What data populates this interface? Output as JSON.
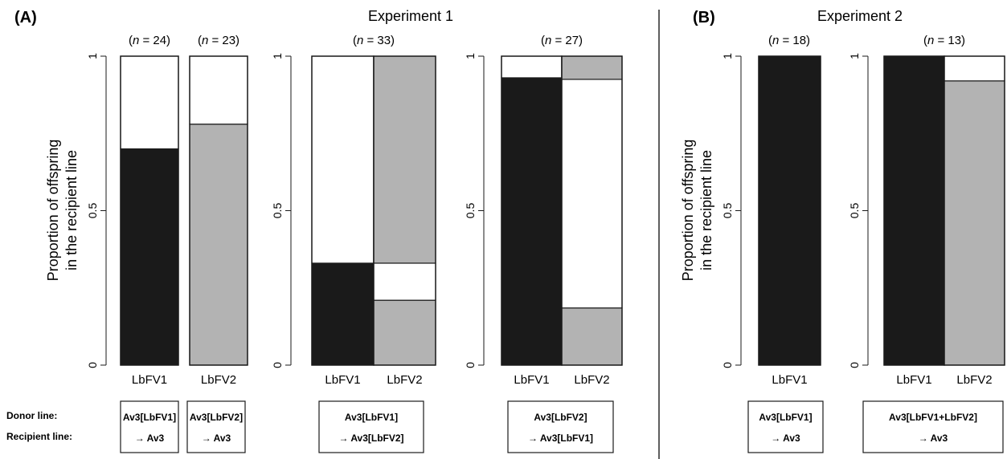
{
  "panels": [
    {
      "letter": "(A)",
      "title": "Experiment 1"
    },
    {
      "letter": "(B)",
      "title": "Experiment 2"
    }
  ],
  "y_label_line1": "Proportion of offspring",
  "y_label_line2": "in the recipient line",
  "box_labels": {
    "donor": "Donor line:",
    "recipient": "Recipient line:"
  },
  "colors": {
    "LbFV1": "#1a1a1a",
    "LbFV2": "#b3b3b3",
    "uninfected": "#ffffff"
  },
  "chart_data": [
    {
      "type": "bar",
      "panel": "A",
      "axis_ticks": [
        "0",
        "0.5",
        "1"
      ],
      "ylim": [
        0,
        1
      ],
      "n_labels": [
        "24",
        "23"
      ],
      "categories": [
        "LbFV1",
        "LbFV2"
      ],
      "box_lines": [
        [
          "Av3[LbFV1]",
          "→ Av3"
        ],
        [
          "Av3[LbFV2]",
          "→ Av3"
        ]
      ],
      "columns": [
        {
          "category": "LbFV1",
          "segments": [
            {
              "fill": "LbFV1",
              "value": 0.7
            },
            {
              "fill": "uninfected",
              "value": 0.3
            }
          ]
        },
        {
          "category": "LbFV2",
          "segments": [
            {
              "fill": "LbFV2",
              "value": 0.78
            },
            {
              "fill": "uninfected",
              "value": 0.22
            }
          ]
        }
      ]
    },
    {
      "type": "bar",
      "panel": "A",
      "axis_ticks": [
        "0",
        "0.5",
        "1"
      ],
      "ylim": [
        0,
        1
      ],
      "n_labels": [
        "33"
      ],
      "categories": [
        "LbFV1",
        "LbFV2"
      ],
      "box_lines": [
        [
          "Av3[LbFV1]",
          "→ Av3[LbFV2]"
        ]
      ],
      "columns": [
        {
          "category": "LbFV1",
          "segments": [
            {
              "fill": "LbFV1",
              "value": 0.33
            },
            {
              "fill": "uninfected",
              "value": 0.67
            }
          ]
        },
        {
          "category": "LbFV2",
          "segments": [
            {
              "fill": "LbFV2",
              "value": 0.21
            },
            {
              "fill": "uninfected",
              "value": 0.12
            },
            {
              "fill": "LbFV2",
              "value": 0.67
            }
          ]
        }
      ]
    },
    {
      "type": "bar",
      "panel": "A",
      "axis_ticks": [
        "0",
        "0.5",
        "1"
      ],
      "ylim": [
        0,
        1
      ],
      "n_labels": [
        "27"
      ],
      "categories": [
        "LbFV1",
        "LbFV2"
      ],
      "box_lines": [
        [
          "Av3[LbFV2]",
          "→ Av3[LbFV1]"
        ]
      ],
      "columns": [
        {
          "category": "LbFV1",
          "segments": [
            {
              "fill": "LbFV1",
              "value": 0.93
            },
            {
              "fill": "uninfected",
              "value": 0.07
            }
          ]
        },
        {
          "category": "LbFV2",
          "segments": [
            {
              "fill": "LbFV2",
              "value": 0.185
            },
            {
              "fill": "uninfected",
              "value": 0.74
            },
            {
              "fill": "LbFV2",
              "value": 0.075
            }
          ]
        }
      ]
    },
    {
      "type": "bar",
      "panel": "B",
      "axis_ticks": [
        "0",
        "0.5",
        "1"
      ],
      "ylim": [
        0,
        1
      ],
      "n_labels": [
        "18"
      ],
      "categories": [
        "LbFV1"
      ],
      "box_lines": [
        [
          "Av3[LbFV1]",
          "→ Av3"
        ]
      ],
      "columns": [
        {
          "category": "LbFV1",
          "segments": [
            {
              "fill": "LbFV1",
              "value": 1.0
            }
          ]
        }
      ]
    },
    {
      "type": "bar",
      "panel": "B",
      "axis_ticks": [
        "0",
        "0.5",
        "1"
      ],
      "ylim": [
        0,
        1
      ],
      "n_labels": [
        "13"
      ],
      "categories": [
        "LbFV1",
        "LbFV2"
      ],
      "box_lines": [
        [
          "Av3[LbFV1+LbFV2]",
          "→ Av3"
        ]
      ],
      "columns": [
        {
          "category": "LbFV1",
          "segments": [
            {
              "fill": "LbFV1",
              "value": 1.0
            }
          ]
        },
        {
          "category": "LbFV2",
          "segments": [
            {
              "fill": "LbFV2",
              "value": 0.92
            },
            {
              "fill": "uninfected",
              "value": 0.08
            }
          ]
        }
      ]
    }
  ]
}
